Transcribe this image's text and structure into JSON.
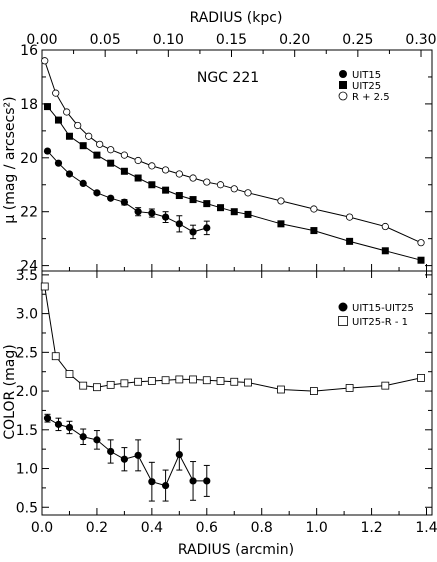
{
  "chart_data": [
    {
      "type": "scatter",
      "panel": "surface-brightness",
      "annotation": "NGC 221",
      "xlabel": "RADIUS (arcmin)",
      "xlabel_top": "RADIUS (kpc)",
      "ylabel": "μ (mag / arcsecs²)",
      "xlim": [
        0.0,
        1.42
      ],
      "ylim": [
        24.2,
        16.0
      ],
      "y_inverted": true,
      "x_ticks": [
        "0.0",
        "0.2",
        "0.4",
        "0.6",
        "0.8",
        "1.0",
        "1.2",
        "1.4"
      ],
      "x_top_ticks": [
        "0.00",
        "0.05",
        "0.10",
        "0.15",
        "0.20",
        "0.25",
        "0.30"
      ],
      "x_top_values": [
        0.0,
        0.05,
        0.1,
        0.15,
        0.2,
        0.25,
        0.3
      ],
      "y_ticks": [
        "16",
        "18",
        "20",
        "22",
        "24"
      ],
      "legend_position": "top-right",
      "series": [
        {
          "name": "UIT15",
          "marker": "filled-circle",
          "x": [
            0.02,
            0.06,
            0.1,
            0.15,
            0.2,
            0.25,
            0.3,
            0.35,
            0.4,
            0.45,
            0.5,
            0.55,
            0.6
          ],
          "y": [
            19.75,
            20.2,
            20.6,
            20.95,
            21.3,
            21.5,
            21.65,
            22.0,
            22.05,
            22.2,
            22.45,
            22.75,
            22.6
          ],
          "yerr": [
            0,
            0,
            0,
            0,
            0,
            0,
            0.1,
            0.15,
            0.15,
            0.2,
            0.3,
            0.25,
            0.25
          ]
        },
        {
          "name": "UIT25",
          "marker": "filled-square",
          "x": [
            0.02,
            0.06,
            0.1,
            0.15,
            0.2,
            0.25,
            0.3,
            0.35,
            0.4,
            0.45,
            0.5,
            0.55,
            0.6,
            0.65,
            0.7,
            0.75,
            0.87,
            0.99,
            1.12,
            1.25,
            1.38
          ],
          "y": [
            18.1,
            18.6,
            19.2,
            19.55,
            19.9,
            20.2,
            20.5,
            20.75,
            21.0,
            21.2,
            21.4,
            21.55,
            21.7,
            21.85,
            22.0,
            22.1,
            22.45,
            22.7,
            23.1,
            23.45,
            23.8
          ]
        },
        {
          "name": "R + 2.5",
          "marker": "open-circle",
          "x": [
            0.01,
            0.05,
            0.09,
            0.13,
            0.17,
            0.21,
            0.25,
            0.3,
            0.35,
            0.4,
            0.45,
            0.5,
            0.55,
            0.6,
            0.65,
            0.7,
            0.75,
            0.87,
            0.99,
            1.12,
            1.25,
            1.38
          ],
          "y": [
            16.4,
            17.6,
            18.3,
            18.8,
            19.2,
            19.5,
            19.7,
            19.9,
            20.1,
            20.3,
            20.45,
            20.6,
            20.75,
            20.9,
            21.0,
            21.15,
            21.3,
            21.6,
            21.9,
            22.2,
            22.55,
            23.15
          ]
        }
      ]
    },
    {
      "type": "line",
      "panel": "color",
      "xlabel": "RADIUS (arcmin)",
      "ylabel": "COLOR (mag)",
      "xlim": [
        0.0,
        1.42
      ],
      "ylim": [
        0.4,
        3.55
      ],
      "x_ticks": [
        "0.0",
        "0.2",
        "0.4",
        "0.6",
        "0.8",
        "1.0",
        "1.2",
        "1.4"
      ],
      "y_ticks": [
        "0.5",
        "1.0",
        "1.5",
        "2.0",
        "2.5",
        "3.0",
        "3.5"
      ],
      "legend_position": "top-right",
      "series": [
        {
          "name": "UIT15-UIT25",
          "marker": "filled-circle",
          "x": [
            0.02,
            0.06,
            0.1,
            0.15,
            0.2,
            0.25,
            0.3,
            0.35,
            0.4,
            0.45,
            0.5,
            0.55,
            0.6
          ],
          "y": [
            1.65,
            1.57,
            1.53,
            1.41,
            1.37,
            1.22,
            1.12,
            1.17,
            0.83,
            0.78,
            1.18,
            0.84,
            0.84
          ],
          "yerr": [
            0.05,
            0.08,
            0.08,
            0.1,
            0.12,
            0.15,
            0.15,
            0.2,
            0.25,
            0.2,
            0.2,
            0.25,
            0.2
          ]
        },
        {
          "name": "UIT25-R - 1",
          "marker": "open-square",
          "x": [
            0.01,
            0.05,
            0.1,
            0.15,
            0.2,
            0.25,
            0.3,
            0.35,
            0.4,
            0.45,
            0.5,
            0.55,
            0.6,
            0.65,
            0.7,
            0.75,
            0.87,
            0.99,
            1.12,
            1.25,
            1.38
          ],
          "y": [
            3.35,
            2.45,
            2.22,
            2.07,
            2.05,
            2.08,
            2.1,
            2.12,
            2.13,
            2.14,
            2.15,
            2.15,
            2.14,
            2.13,
            2.12,
            2.11,
            2.02,
            2.0,
            2.04,
            2.07,
            2.17
          ]
        }
      ]
    }
  ]
}
